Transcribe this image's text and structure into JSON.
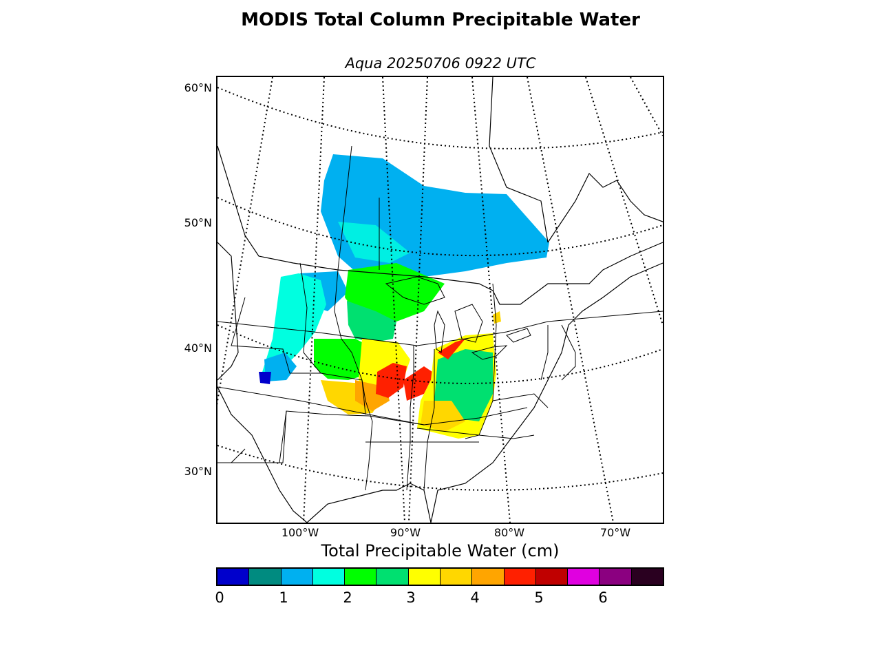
{
  "title": "MODIS Total Column Precipitable Water",
  "subtitle": "Aqua 20250706 0922 UTC",
  "map": {
    "lat_labels": [
      "60°N",
      "50°N",
      "40°N",
      "30°N"
    ],
    "lon_labels": [
      "100°W",
      "90°W",
      "80°W",
      "70°W"
    ]
  },
  "colorbar": {
    "title": "Total Precipitable Water (cm)",
    "ticks": [
      "0",
      "1",
      "2",
      "3",
      "4",
      "5",
      "6"
    ],
    "colors": [
      "#0000cc",
      "#008b80",
      "#00b0f0",
      "#00ffe0",
      "#00ff00",
      "#00e070",
      "#ffff00",
      "#ffd700",
      "#ffa500",
      "#ff2000",
      "#c00000",
      "#e000e0",
      "#8b0080",
      "#2a0020"
    ]
  }
}
